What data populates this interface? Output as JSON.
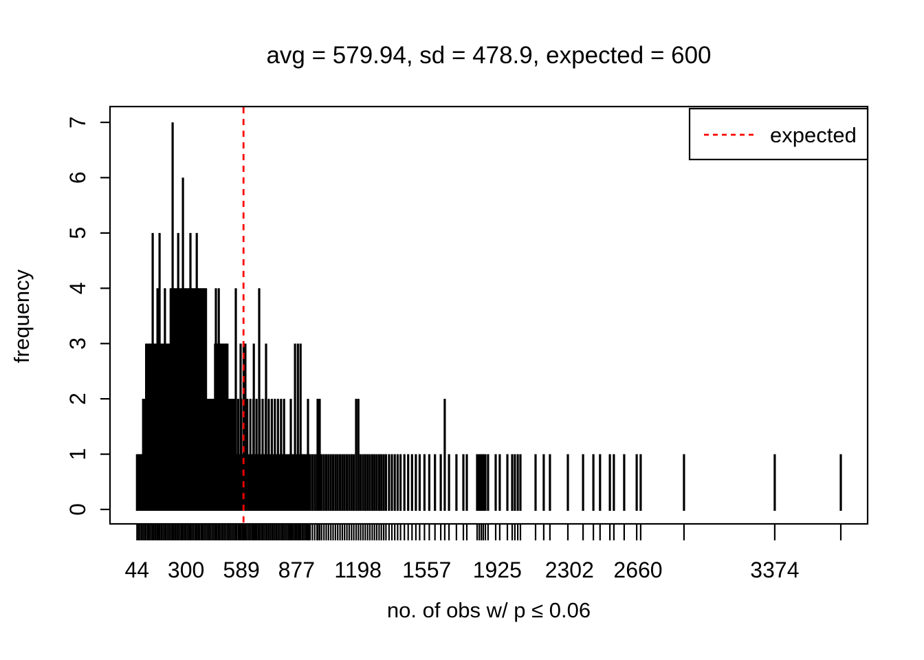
{
  "page": {
    "background": "#FFFFFF"
  },
  "chart_data": {
    "type": "bar",
    "variant": "spike-histogram (R plot of table(x), type='h')",
    "title": "avg = 579.94, sd = 478.9, expected = 600",
    "xlabel": "no. of obs w/ p ≤ 0.06",
    "ylabel": "frequency",
    "xlim": [
      -97,
      3859
    ],
    "ylim": [
      0,
      7
    ],
    "x_tick_values": [
      44,
      300,
      589,
      877,
      1198,
      1557,
      1925,
      2302,
      2660,
      3374
    ],
    "y_tick_values": [
      0,
      1,
      2,
      3,
      4,
      5,
      6,
      7
    ],
    "grid": false,
    "spike_color": "#000000",
    "expected_line": {
      "value": 600,
      "color": "#FF0000",
      "style": "dashed",
      "label": "expected"
    },
    "legend": {
      "position": "top-right",
      "entries": [
        {
          "label": "expected",
          "line_color": "#FF0000",
          "line_style": "dashed"
        }
      ]
    },
    "rug": true,
    "spikes": [
      [
        44,
        1
      ],
      [
        52,
        1
      ],
      [
        60,
        1
      ],
      [
        68,
        1
      ],
      [
        76,
        2
      ],
      [
        84,
        2
      ],
      [
        92,
        3
      ],
      [
        100,
        3
      ],
      [
        108,
        3
      ],
      [
        116,
        3
      ],
      [
        124,
        3
      ],
      [
        132,
        3
      ],
      [
        140,
        3
      ],
      [
        148,
        3
      ],
      [
        156,
        3
      ],
      [
        164,
        3
      ],
      [
        172,
        3
      ],
      [
        180,
        3
      ],
      [
        188,
        3
      ],
      [
        196,
        3
      ],
      [
        204,
        3
      ],
      [
        212,
        3
      ],
      [
        220,
        4
      ],
      [
        228,
        4
      ],
      [
        236,
        4
      ],
      [
        244,
        4
      ],
      [
        252,
        4
      ],
      [
        260,
        4
      ],
      [
        268,
        4
      ],
      [
        276,
        4
      ],
      [
        284,
        4
      ],
      [
        292,
        4
      ],
      [
        300,
        4
      ],
      [
        308,
        4
      ],
      [
        316,
        4
      ],
      [
        324,
        4
      ],
      [
        332,
        4
      ],
      [
        340,
        4
      ],
      [
        348,
        4
      ],
      [
        356,
        4
      ],
      [
        364,
        4
      ],
      [
        372,
        4
      ],
      [
        380,
        4
      ],
      [
        388,
        4
      ],
      [
        396,
        4
      ],
      [
        404,
        4
      ],
      [
        412,
        2
      ],
      [
        420,
        2
      ],
      [
        428,
        2
      ],
      [
        436,
        2
      ],
      [
        444,
        2
      ],
      [
        452,
        3
      ],
      [
        460,
        3
      ],
      [
        468,
        3
      ],
      [
        476,
        3
      ],
      [
        484,
        3
      ],
      [
        492,
        3
      ],
      [
        500,
        3
      ],
      [
        508,
        3
      ],
      [
        516,
        3
      ],
      [
        524,
        2
      ],
      [
        532,
        2
      ],
      [
        540,
        2
      ],
      [
        548,
        2
      ],
      [
        556,
        2
      ],
      [
        572,
        2
      ],
      [
        588,
        2
      ],
      [
        604,
        2
      ],
      [
        620,
        2
      ],
      [
        636,
        2
      ],
      [
        652,
        2
      ],
      [
        668,
        2
      ],
      [
        684,
        2
      ],
      [
        700,
        2
      ],
      [
        716,
        2
      ],
      [
        732,
        2
      ],
      [
        748,
        2
      ],
      [
        764,
        2
      ],
      [
        780,
        2
      ],
      [
        796,
        2
      ],
      [
        812,
        2
      ],
      [
        564,
        1
      ],
      [
        580,
        1
      ],
      [
        596,
        1
      ],
      [
        612,
        1
      ],
      [
        628,
        1
      ],
      [
        644,
        1
      ],
      [
        660,
        1
      ],
      [
        676,
        1
      ],
      [
        692,
        1
      ],
      [
        708,
        1
      ],
      [
        724,
        1
      ],
      [
        740,
        1
      ],
      [
        756,
        1
      ],
      [
        772,
        1
      ],
      [
        788,
        1
      ],
      [
        804,
        1
      ],
      [
        820,
        1
      ],
      [
        828,
        1
      ],
      [
        836,
        1
      ],
      [
        844,
        1
      ],
      [
        852,
        1
      ],
      [
        860,
        1
      ],
      [
        868,
        1
      ],
      [
        876,
        1
      ],
      [
        884,
        1
      ],
      [
        892,
        1
      ],
      [
        900,
        1
      ],
      [
        908,
        1
      ],
      [
        916,
        1
      ],
      [
        924,
        1
      ],
      [
        932,
        1
      ],
      [
        940,
        1
      ],
      [
        948,
        1
      ],
      [
        960,
        1
      ],
      [
        972,
        1
      ],
      [
        984,
        1
      ],
      [
        996,
        1
      ],
      [
        1008,
        1
      ],
      [
        1020,
        1
      ],
      [
        1032,
        1
      ],
      [
        1044,
        1
      ],
      [
        1056,
        1
      ],
      [
        1068,
        1
      ],
      [
        1080,
        1
      ],
      [
        1092,
        1
      ],
      [
        1104,
        1
      ],
      [
        1116,
        1
      ],
      [
        1128,
        1
      ],
      [
        1140,
        1
      ],
      [
        1152,
        1
      ],
      [
        1164,
        1
      ],
      [
        1176,
        1
      ],
      [
        1188,
        2
      ],
      [
        1200,
        2
      ],
      [
        1212,
        1
      ],
      [
        1224,
        1
      ],
      [
        1236,
        1
      ],
      [
        1248,
        1
      ],
      [
        1260,
        1
      ],
      [
        1272,
        1
      ],
      [
        1284,
        1
      ],
      [
        1296,
        1
      ],
      [
        1308,
        1
      ],
      [
        1320,
        1
      ],
      [
        1332,
        1
      ],
      [
        1344,
        1
      ],
      [
        1360,
        1
      ],
      [
        1375,
        1
      ],
      [
        1390,
        1
      ],
      [
        1405,
        1
      ],
      [
        1420,
        1
      ],
      [
        1440,
        1
      ],
      [
        1460,
        1
      ],
      [
        1480,
        1
      ],
      [
        1500,
        1
      ],
      [
        1520,
        1
      ],
      [
        1545,
        1
      ],
      [
        1570,
        1
      ],
      [
        1600,
        1
      ],
      [
        1630,
        1
      ],
      [
        1651,
        2
      ],
      [
        1673,
        1
      ],
      [
        1712,
        1
      ],
      [
        1748,
        1
      ],
      [
        1766,
        1
      ],
      [
        1820,
        1
      ],
      [
        1831,
        1
      ],
      [
        1842,
        1
      ],
      [
        1852,
        1
      ],
      [
        1863,
        1
      ],
      [
        1877,
        1
      ],
      [
        1917,
        1
      ],
      [
        1938,
        1
      ],
      [
        1978,
        1
      ],
      [
        2003,
        1
      ],
      [
        2017,
        1
      ],
      [
        2032,
        1
      ],
      [
        2046,
        1
      ],
      [
        2125,
        1
      ],
      [
        2168,
        1
      ],
      [
        2200,
        1
      ],
      [
        2294,
        1
      ],
      [
        2373,
        1
      ],
      [
        2427,
        1
      ],
      [
        2462,
        1
      ],
      [
        2513,
        1
      ],
      [
        2534,
        1
      ],
      [
        2588,
        1
      ],
      [
        2653,
        1
      ],
      [
        2674,
        1
      ],
      [
        2900,
        1
      ],
      [
        3374,
        1
      ],
      [
        3719,
        1
      ],
      [
        126,
        5
      ],
      [
        162,
        5
      ],
      [
        259,
        5
      ],
      [
        323,
        5
      ],
      [
        356,
        5
      ],
      [
        230,
        7
      ],
      [
        284,
        6
      ],
      [
        151,
        4
      ],
      [
        190,
        4
      ],
      [
        456,
        4
      ],
      [
        471,
        4
      ],
      [
        560,
        4
      ],
      [
        682,
        4
      ],
      [
        585,
        3
      ],
      [
        601,
        3
      ],
      [
        610,
        3
      ],
      [
        654,
        3
      ],
      [
        718,
        3
      ],
      [
        869,
        3
      ],
      [
        884,
        3
      ],
      [
        898,
        3
      ],
      [
        847,
        2
      ],
      [
        937,
        2
      ],
      [
        987,
        2
      ],
      [
        998,
        2
      ]
    ]
  }
}
